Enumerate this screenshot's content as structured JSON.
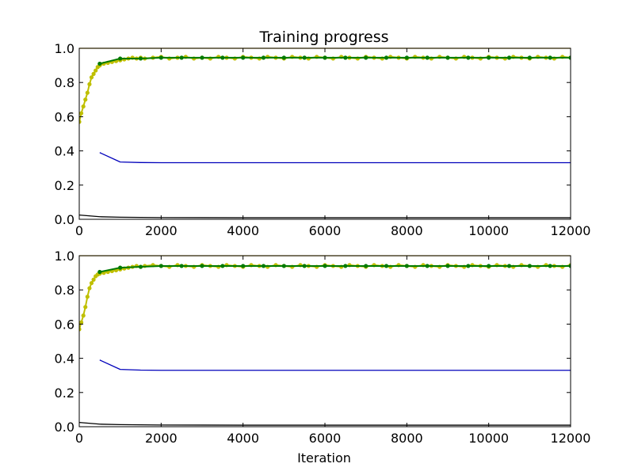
{
  "chart_data": [
    {
      "type": "line",
      "title": "Training progress",
      "xlabel": "",
      "ylabel": "",
      "xlim": [
        0,
        12000
      ],
      "ylim": [
        0,
        1.0
      ],
      "xticks": [
        0,
        2000,
        4000,
        6000,
        8000,
        10000,
        12000
      ],
      "yticks": [
        0.0,
        0.2,
        0.4,
        0.6,
        0.8,
        1.0
      ],
      "xtick_labels": [
        "0",
        "2000",
        "4000",
        "6000",
        "8000",
        "10000",
        "12000"
      ],
      "ytick_labels": [
        "0.0",
        "0.2",
        "0.4",
        "0.6",
        "0.8",
        "1.0"
      ],
      "grid": false,
      "series": [
        {
          "color": "#bfbf00",
          "style": "line-dots",
          "x": [
            0,
            50,
            100,
            150,
            200,
            250,
            300,
            350,
            400,
            450,
            500,
            600,
            700,
            800,
            900,
            1000,
            1100,
            1200,
            1300,
            1400,
            1500,
            1600,
            1800,
            2000,
            2200,
            2400,
            2600,
            2800,
            3000,
            3200,
            3400,
            3600,
            3800,
            4000,
            4200,
            4400,
            4600,
            4800,
            5000,
            5200,
            5400,
            5600,
            5800,
            6000,
            6200,
            6400,
            6600,
            6800,
            7000,
            7200,
            7400,
            7600,
            7800,
            8000,
            8200,
            8400,
            8600,
            8800,
            9000,
            9200,
            9400,
            9600,
            9800,
            10000,
            10200,
            10400,
            10600,
            10800,
            11000,
            11200,
            11400,
            11600,
            11800,
            12000
          ],
          "values": [
            0.57,
            0.62,
            0.66,
            0.7,
            0.74,
            0.79,
            0.83,
            0.85,
            0.87,
            0.89,
            0.9,
            0.91,
            0.915,
            0.92,
            0.925,
            0.93,
            0.935,
            0.94,
            0.945,
            0.94,
            0.945,
            0.94,
            0.945,
            0.95,
            0.94,
            0.945,
            0.95,
            0.94,
            0.945,
            0.94,
            0.95,
            0.945,
            0.94,
            0.95,
            0.945,
            0.94,
            0.95,
            0.945,
            0.94,
            0.95,
            0.945,
            0.94,
            0.95,
            0.945,
            0.94,
            0.95,
            0.945,
            0.94,
            0.95,
            0.945,
            0.94,
            0.95,
            0.945,
            0.94,
            0.95,
            0.945,
            0.94,
            0.95,
            0.945,
            0.94,
            0.95,
            0.945,
            0.94,
            0.95,
            0.945,
            0.94,
            0.95,
            0.945,
            0.94,
            0.95,
            0.945,
            0.94,
            0.95,
            0.945
          ]
        },
        {
          "color": "#007a00",
          "style": "line-dots",
          "x": [
            500,
            1000,
            1500,
            2000,
            2500,
            3000,
            3500,
            4000,
            4500,
            5000,
            5500,
            6000,
            6500,
            7000,
            7500,
            8000,
            8500,
            9000,
            9500,
            10000,
            10500,
            11000,
            11500,
            12000
          ],
          "values": [
            0.91,
            0.94,
            0.94,
            0.945,
            0.945,
            0.945,
            0.945,
            0.945,
            0.945,
            0.945,
            0.945,
            0.945,
            0.945,
            0.945,
            0.945,
            0.945,
            0.945,
            0.945,
            0.945,
            0.945,
            0.945,
            0.945,
            0.945,
            0.945
          ]
        },
        {
          "color": "#0000bb",
          "style": "line",
          "x": [
            500,
            1000,
            1500,
            2000,
            12000
          ],
          "values": [
            0.39,
            0.335,
            0.332,
            0.331,
            0.331
          ]
        },
        {
          "color": "#000000",
          "style": "line",
          "x": [
            0,
            500,
            1000,
            2000,
            4000,
            8000,
            12000
          ],
          "values": [
            0.025,
            0.015,
            0.012,
            0.01,
            0.009,
            0.009,
            0.009
          ]
        },
        {
          "color": "#d4a200",
          "style": "line",
          "x": [
            0,
            12000
          ],
          "values": [
            1.0,
            1.0
          ]
        }
      ]
    },
    {
      "type": "line",
      "title": "",
      "xlabel": "Iteration",
      "ylabel": "",
      "xlim": [
        0,
        12000
      ],
      "ylim": [
        0,
        1.0
      ],
      "xticks": [
        0,
        2000,
        4000,
        6000,
        8000,
        10000,
        12000
      ],
      "yticks": [
        0.0,
        0.2,
        0.4,
        0.6,
        0.8,
        1.0
      ],
      "xtick_labels": [
        "0",
        "2000",
        "4000",
        "6000",
        "8000",
        "10000",
        "12000"
      ],
      "ytick_labels": [
        "0.0",
        "0.2",
        "0.4",
        "0.6",
        "0.8",
        "1.0"
      ],
      "grid": false,
      "series": [
        {
          "color": "#bfbf00",
          "style": "line-dots",
          "x": [
            0,
            50,
            100,
            150,
            200,
            250,
            300,
            350,
            400,
            450,
            500,
            600,
            700,
            800,
            900,
            1000,
            1100,
            1200,
            1300,
            1400,
            1500,
            1600,
            1800,
            2000,
            2200,
            2400,
            2600,
            2800,
            3000,
            3200,
            3400,
            3600,
            3800,
            4000,
            4200,
            4400,
            4600,
            4800,
            5000,
            5200,
            5400,
            5600,
            5800,
            6000,
            6200,
            6400,
            6600,
            6800,
            7000,
            7200,
            7400,
            7600,
            7800,
            8000,
            8200,
            8400,
            8600,
            8800,
            9000,
            9200,
            9400,
            9600,
            9800,
            10000,
            10200,
            10400,
            10600,
            10800,
            11000,
            11200,
            11400,
            11600,
            11800,
            12000
          ],
          "values": [
            0.57,
            0.61,
            0.65,
            0.7,
            0.76,
            0.81,
            0.84,
            0.86,
            0.88,
            0.89,
            0.895,
            0.9,
            0.905,
            0.91,
            0.915,
            0.92,
            0.925,
            0.93,
            0.935,
            0.94,
            0.935,
            0.94,
            0.945,
            0.94,
            0.935,
            0.945,
            0.94,
            0.935,
            0.945,
            0.94,
            0.935,
            0.945,
            0.94,
            0.935,
            0.945,
            0.94,
            0.935,
            0.945,
            0.94,
            0.935,
            0.945,
            0.94,
            0.935,
            0.945,
            0.94,
            0.935,
            0.945,
            0.94,
            0.935,
            0.945,
            0.94,
            0.935,
            0.945,
            0.94,
            0.935,
            0.945,
            0.94,
            0.935,
            0.945,
            0.94,
            0.935,
            0.945,
            0.94,
            0.935,
            0.945,
            0.94,
            0.935,
            0.945,
            0.94,
            0.935,
            0.945,
            0.94,
            0.935,
            0.945
          ]
        },
        {
          "color": "#007a00",
          "style": "line-dots",
          "x": [
            500,
            1000,
            1500,
            2000,
            2500,
            3000,
            3500,
            4000,
            4500,
            5000,
            5500,
            6000,
            6500,
            7000,
            7500,
            8000,
            8500,
            9000,
            9500,
            10000,
            10500,
            11000,
            11500,
            12000
          ],
          "values": [
            0.905,
            0.93,
            0.935,
            0.94,
            0.94,
            0.94,
            0.94,
            0.94,
            0.94,
            0.94,
            0.94,
            0.94,
            0.94,
            0.94,
            0.94,
            0.94,
            0.94,
            0.94,
            0.94,
            0.94,
            0.94,
            0.94,
            0.94,
            0.94
          ]
        },
        {
          "color": "#0000bb",
          "style": "line",
          "x": [
            500,
            1000,
            1500,
            2000,
            12000
          ],
          "values": [
            0.39,
            0.335,
            0.331,
            0.33,
            0.33
          ]
        },
        {
          "color": "#000000",
          "style": "line",
          "x": [
            0,
            500,
            1000,
            2000,
            4000,
            8000,
            12000
          ],
          "values": [
            0.025,
            0.015,
            0.012,
            0.01,
            0.009,
            0.009,
            0.009
          ]
        },
        {
          "color": "#d4a200",
          "style": "line",
          "x": [
            0,
            12000
          ],
          "values": [
            1.0,
            1.0
          ]
        }
      ]
    }
  ]
}
